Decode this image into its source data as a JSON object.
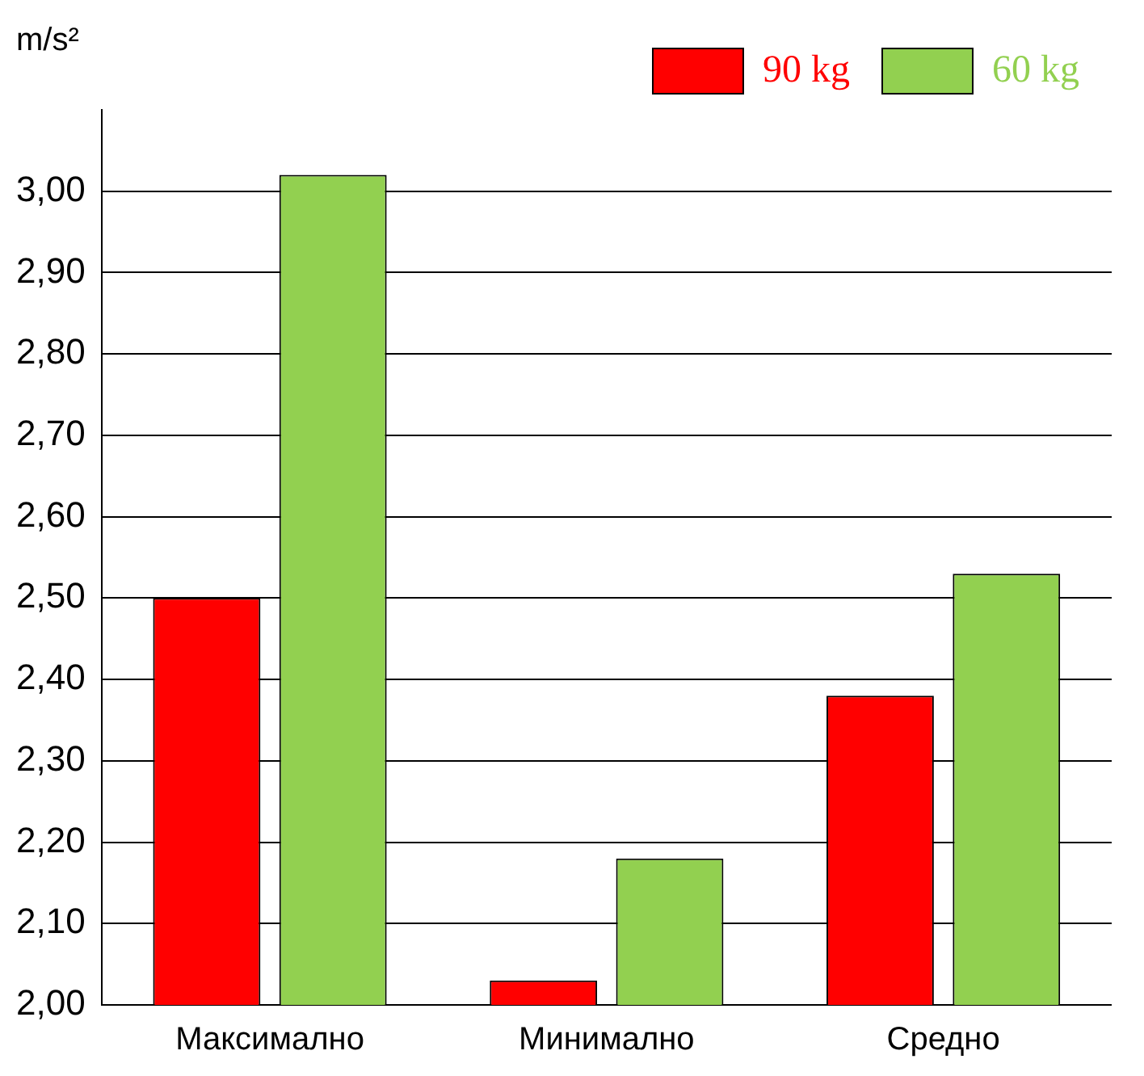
{
  "chart_data": {
    "type": "bar",
    "ylabel": "m/s²",
    "categories": [
      "Максимално",
      "Минимално",
      "Средно"
    ],
    "series": [
      {
        "name": "90 kg",
        "color": "#ff0000",
        "values": [
          2.5,
          2.03,
          2.38
        ]
      },
      {
        "name": "60 kg",
        "color": "#92d050",
        "values": [
          3.02,
          2.18,
          2.53
        ]
      }
    ],
    "ylim": [
      2,
      3.1
    ],
    "yticks": [
      {
        "value": 2,
        "label": "2,00"
      },
      {
        "value": 2.1,
        "label": "2,10"
      },
      {
        "value": 2.2,
        "label": "2,20"
      },
      {
        "value": 2.3,
        "label": "2,30"
      },
      {
        "value": 2.4,
        "label": "2,40"
      },
      {
        "value": 2.5,
        "label": "2,50"
      },
      {
        "value": 2.6,
        "label": "2,60"
      },
      {
        "value": 2.7,
        "label": "2,70"
      },
      {
        "value": 2.8,
        "label": "2,80"
      },
      {
        "value": 2.9,
        "label": "2,90"
      },
      {
        "value": 3,
        "label": "3,00"
      }
    ],
    "grid": "y",
    "legend": "top right"
  }
}
